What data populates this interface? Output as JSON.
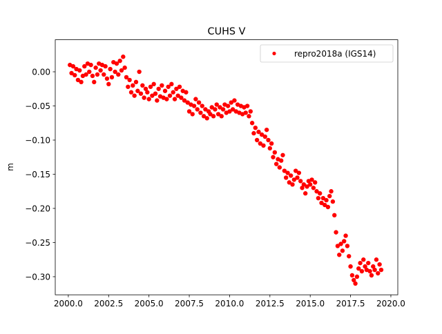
{
  "chart_data": {
    "type": "scatter",
    "title": "CUHS V",
    "xlabel": "",
    "ylabel": "m",
    "xlim": [
      1999.19,
      2020.43
    ],
    "ylim": [
      -0.3265,
      0.0469
    ],
    "xticks": [
      2000.0,
      2002.5,
      2005.0,
      2007.5,
      2010.0,
      2012.5,
      2015.0,
      2017.5,
      2020.0
    ],
    "xtick_labels": [
      "2000.0",
      "2002.5",
      "2005.0",
      "2007.5",
      "2010.0",
      "2012.5",
      "2015.0",
      "2017.5",
      "2020.0"
    ],
    "yticks": [
      0.0,
      -0.05,
      -0.1,
      -0.15,
      -0.2,
      -0.25,
      -0.3
    ],
    "ytick_labels": [
      "0.00",
      "−0.05",
      "−0.10",
      "−0.15",
      "−0.20",
      "−0.25",
      "−0.30"
    ],
    "grid": false,
    "legend_position": "top-right",
    "series": [
      {
        "name": "repro2018a (IGS14)",
        "color": "#ff0000",
        "marker": "dot",
        "x": [
          2000.1,
          2000.2,
          2000.3,
          2000.4,
          2000.5,
          2000.6,
          2000.7,
          2000.8,
          2000.9,
          2001.0,
          2001.1,
          2001.2,
          2001.3,
          2001.4,
          2001.5,
          2001.6,
          2001.7,
          2001.8,
          2001.9,
          2002.0,
          2002.1,
          2002.2,
          2002.3,
          2002.4,
          2002.5,
          2002.6,
          2002.7,
          2002.8,
          2002.9,
          2003.0,
          2003.1,
          2003.2,
          2003.3,
          2003.4,
          2003.5,
          2003.6,
          2003.7,
          2003.8,
          2003.9,
          2004.0,
          2004.1,
          2004.2,
          2004.3,
          2004.4,
          2004.5,
          2004.6,
          2004.7,
          2004.8,
          2004.9,
          2005.0,
          2005.1,
          2005.2,
          2005.3,
          2005.4,
          2005.5,
          2005.6,
          2005.7,
          2005.8,
          2005.9,
          2006.0,
          2006.1,
          2006.2,
          2006.3,
          2006.4,
          2006.5,
          2006.6,
          2006.7,
          2006.8,
          2006.9,
          2007.0,
          2007.1,
          2007.2,
          2007.3,
          2007.4,
          2007.5,
          2007.6,
          2007.7,
          2007.8,
          2007.9,
          2008.0,
          2008.1,
          2008.2,
          2008.3,
          2008.4,
          2008.5,
          2008.6,
          2008.7,
          2008.8,
          2008.9,
          2009.0,
          2009.1,
          2009.2,
          2009.3,
          2009.4,
          2009.5,
          2009.6,
          2009.7,
          2009.8,
          2009.9,
          2010.0,
          2010.1,
          2010.2,
          2010.3,
          2010.4,
          2010.5,
          2010.6,
          2010.7,
          2010.8,
          2010.9,
          2011.0,
          2011.1,
          2011.2,
          2011.3,
          2011.4,
          2011.5,
          2011.6,
          2011.7,
          2011.8,
          2011.9,
          2012.0,
          2012.1,
          2012.2,
          2012.3,
          2012.4,
          2012.5,
          2012.6,
          2012.7,
          2012.8,
          2012.9,
          2013.0,
          2013.1,
          2013.2,
          2013.3,
          2013.4,
          2013.5,
          2013.6,
          2013.7,
          2013.8,
          2013.9,
          2014.0,
          2014.1,
          2014.2,
          2014.3,
          2014.4,
          2014.5,
          2014.6,
          2014.7,
          2014.8,
          2014.9,
          2015.0,
          2015.1,
          2015.2,
          2015.3,
          2015.4,
          2015.5,
          2015.6,
          2015.7,
          2015.8,
          2015.9,
          2016.0,
          2016.1,
          2016.2,
          2016.3,
          2016.4,
          2016.5,
          2016.6,
          2016.7,
          2016.8,
          2016.9,
          2017.0,
          2017.1,
          2017.2,
          2017.3,
          2017.4,
          2017.5,
          2017.6,
          2017.7,
          2017.8,
          2017.9,
          2018.0,
          2018.1,
          2018.2,
          2018.3,
          2018.4,
          2018.5,
          2018.6,
          2018.7,
          2018.8,
          2018.9,
          2019.0,
          2019.1,
          2019.2,
          2019.3,
          2019.4
        ],
        "y": [
          0.01,
          -0.002,
          0.008,
          -0.005,
          0.004,
          -0.012,
          0.002,
          -0.015,
          -0.006,
          0.008,
          -0.004,
          0.012,
          0.0,
          0.01,
          -0.006,
          -0.015,
          0.006,
          -0.004,
          0.012,
          0.002,
          0.01,
          -0.004,
          0.008,
          -0.01,
          -0.018,
          0.004,
          -0.008,
          0.014,
          0.0,
          0.012,
          -0.004,
          0.016,
          0.002,
          0.022,
          0.006,
          -0.008,
          -0.022,
          -0.012,
          -0.03,
          -0.02,
          -0.035,
          -0.015,
          -0.028,
          0.0,
          -0.032,
          -0.02,
          -0.038,
          -0.025,
          -0.03,
          -0.04,
          -0.022,
          -0.035,
          -0.018,
          -0.032,
          -0.042,
          -0.025,
          -0.036,
          -0.02,
          -0.038,
          -0.028,
          -0.04,
          -0.022,
          -0.035,
          -0.018,
          -0.03,
          -0.04,
          -0.025,
          -0.035,
          -0.022,
          -0.038,
          -0.028,
          -0.042,
          -0.03,
          -0.045,
          -0.058,
          -0.048,
          -0.062,
          -0.05,
          -0.04,
          -0.055,
          -0.045,
          -0.06,
          -0.05,
          -0.065,
          -0.055,
          -0.068,
          -0.058,
          -0.062,
          -0.052,
          -0.065,
          -0.055,
          -0.048,
          -0.062,
          -0.052,
          -0.065,
          -0.055,
          -0.048,
          -0.06,
          -0.05,
          -0.058,
          -0.045,
          -0.055,
          -0.042,
          -0.058,
          -0.048,
          -0.06,
          -0.05,
          -0.062,
          -0.052,
          -0.06,
          -0.05,
          -0.065,
          -0.058,
          -0.075,
          -0.09,
          -0.082,
          -0.1,
          -0.088,
          -0.105,
          -0.092,
          -0.108,
          -0.095,
          -0.085,
          -0.1,
          -0.112,
          -0.105,
          -0.125,
          -0.118,
          -0.135,
          -0.128,
          -0.14,
          -0.13,
          -0.122,
          -0.145,
          -0.155,
          -0.148,
          -0.162,
          -0.152,
          -0.165,
          -0.158,
          -0.145,
          -0.155,
          -0.148,
          -0.16,
          -0.17,
          -0.165,
          -0.178,
          -0.168,
          -0.16,
          -0.165,
          -0.158,
          -0.17,
          -0.162,
          -0.175,
          -0.185,
          -0.178,
          -0.192,
          -0.185,
          -0.195,
          -0.188,
          -0.198,
          -0.182,
          -0.175,
          -0.19,
          -0.21,
          -0.235,
          -0.255,
          -0.268,
          -0.252,
          -0.262,
          -0.248,
          -0.24,
          -0.255,
          -0.27,
          -0.285,
          -0.298,
          -0.305,
          -0.31,
          -0.3,
          -0.288,
          -0.28,
          -0.292,
          -0.275,
          -0.285,
          -0.29,
          -0.28,
          -0.292,
          -0.298,
          -0.285,
          -0.29,
          -0.275,
          -0.295,
          -0.282,
          -0.29
        ]
      }
    ]
  }
}
